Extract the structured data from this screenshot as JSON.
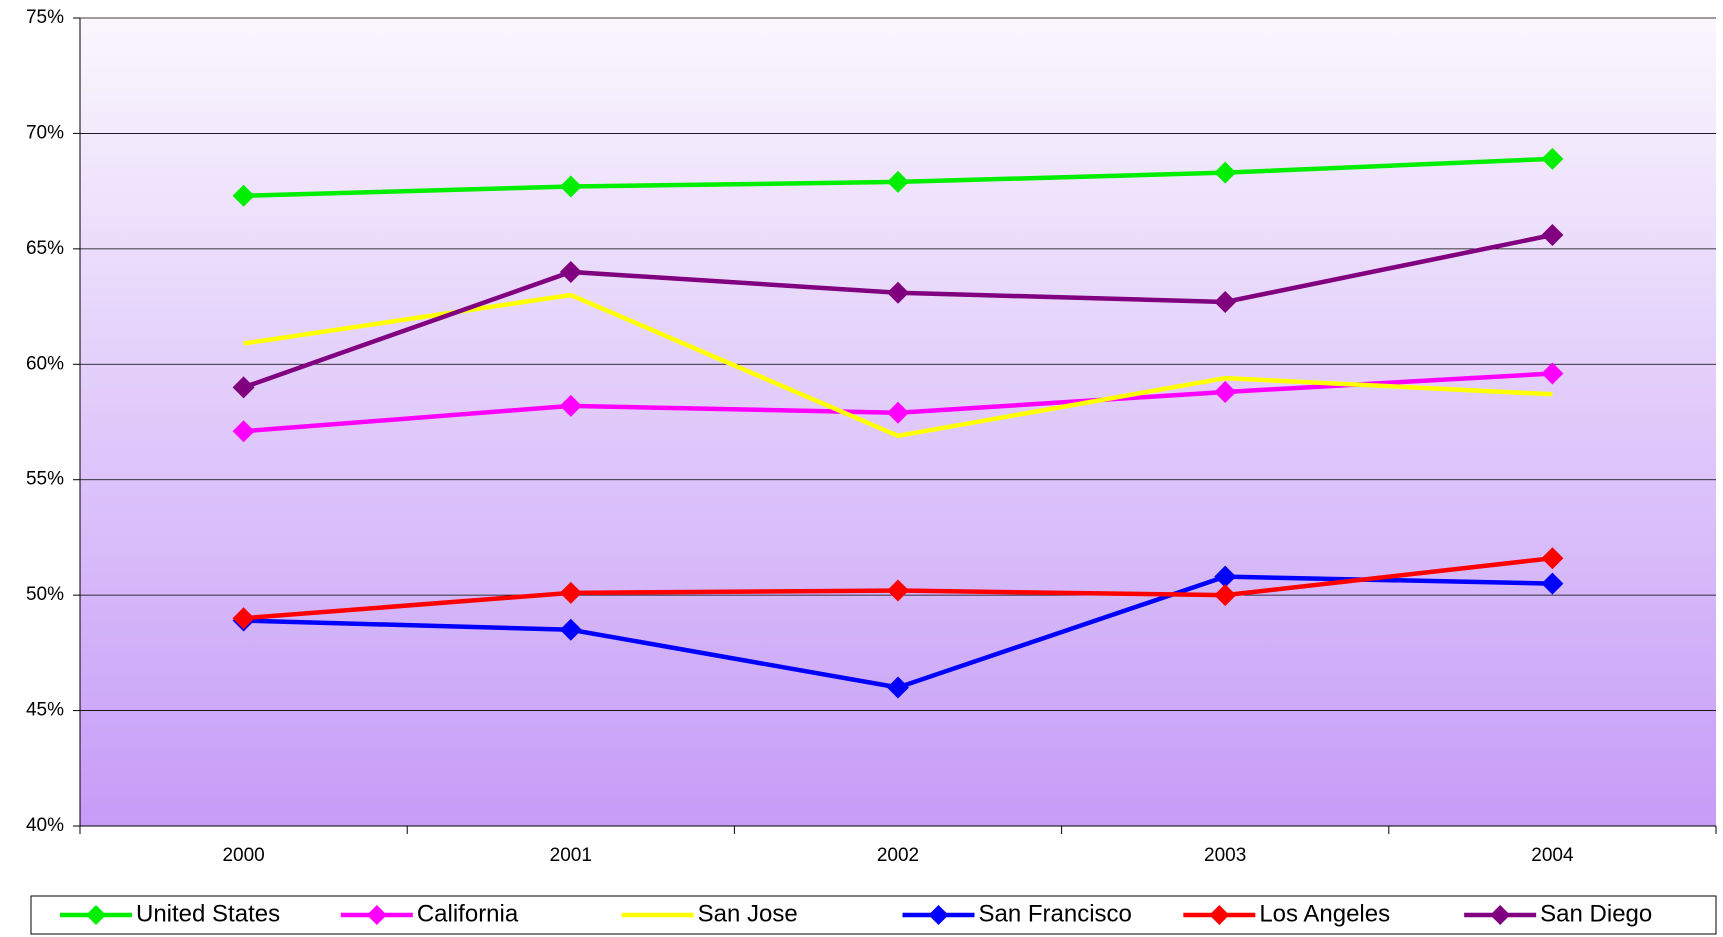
{
  "chart_data": {
    "type": "line",
    "categories": [
      "2000",
      "2001",
      "2002",
      "2003",
      "2004"
    ],
    "series": [
      {
        "name": "United States",
        "color": "#00ee00",
        "marker": "diamond",
        "values": [
          67.3,
          67.7,
          67.9,
          68.3,
          68.9
        ]
      },
      {
        "name": "California",
        "color": "#ff00ff",
        "marker": "diamond",
        "values": [
          57.1,
          58.2,
          57.9,
          58.8,
          59.6
        ]
      },
      {
        "name": "San Jose",
        "color": "#ffff00",
        "marker": "none",
        "values": [
          60.9,
          63.0,
          56.9,
          59.4,
          58.7
        ]
      },
      {
        "name": "San Francisco",
        "color": "#0000ff",
        "marker": "diamond",
        "values": [
          48.9,
          48.5,
          46.0,
          50.8,
          50.5
        ]
      },
      {
        "name": "Los Angeles",
        "color": "#ff0000",
        "marker": "diamond",
        "values": [
          49.0,
          50.1,
          50.2,
          50.0,
          51.6
        ]
      },
      {
        "name": "San Diego",
        "color": "#800080",
        "marker": "diamond",
        "values": [
          59.0,
          64.0,
          63.1,
          62.7,
          65.6
        ]
      }
    ],
    "ylim": [
      40,
      75
    ],
    "yticks": [
      {
        "value": 40,
        "label": "40%"
      },
      {
        "value": 45,
        "label": "45%"
      },
      {
        "value": 50,
        "label": "50%"
      },
      {
        "value": 55,
        "label": "55%"
      },
      {
        "value": 60,
        "label": "60%"
      },
      {
        "value": 65,
        "label": "65%"
      },
      {
        "value": 70,
        "label": "70%"
      },
      {
        "value": 75,
        "label": "75%"
      }
    ],
    "grid": true,
    "legend": "bottom"
  }
}
